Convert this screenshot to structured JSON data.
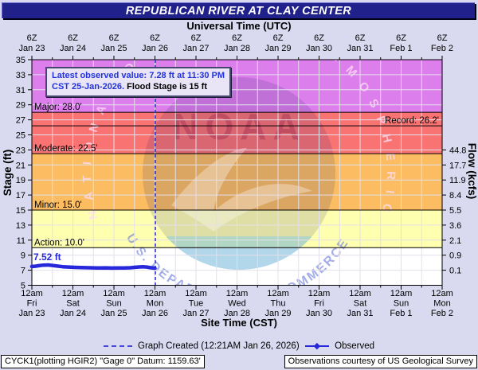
{
  "page_bg": "#D9D9F0",
  "title_bar": {
    "text": "REPUBLICAN RIVER AT CLAY CENTER",
    "bg": "#21218B",
    "fg": "#FFFFFF"
  },
  "top_axis": {
    "title": "Universal Time (UTC)",
    "hour_label": "6Z",
    "dates": [
      "Jan 23",
      "Jan 24",
      "Jan 25",
      "Jan 26",
      "Jan 27",
      "Jan 28",
      "Jan 29",
      "Jan 30",
      "Jan 31",
      "Feb 1",
      "Feb 2"
    ]
  },
  "bottom_axis": {
    "title": "Site Time (CST)",
    "hour_label": "12am",
    "days": [
      "Fri",
      "Sat",
      "Sun",
      "Mon",
      "Tue",
      "Wed",
      "Thu",
      "Fri",
      "Sat",
      "Sun",
      "Mon"
    ],
    "dates": [
      "Jan 23",
      "Jan 24",
      "Jan 25",
      "Jan 26",
      "Jan 27",
      "Jan 28",
      "Jan 29",
      "Jan 30",
      "Jan 31",
      "Feb 1",
      "Feb 2"
    ]
  },
  "left_axis": {
    "title": "Stage (ft)",
    "ticks": [
      35,
      33,
      31,
      29,
      27,
      25,
      23,
      21,
      19,
      17,
      15,
      13,
      11,
      9,
      7,
      5
    ]
  },
  "right_axis": {
    "title": "Flow (kcfs)",
    "ticks": [
      {
        "stage": 23,
        "label": "44.8"
      },
      {
        "stage": 21,
        "label": "17.7"
      },
      {
        "stage": 19,
        "label": "11.9"
      },
      {
        "stage": 17,
        "label": "8.4"
      },
      {
        "stage": 15,
        "label": "5.5"
      },
      {
        "stage": 13,
        "label": "3.6"
      },
      {
        "stage": 11,
        "label": "2.1"
      },
      {
        "stage": 9,
        "label": "0.9"
      },
      {
        "stage": 7,
        "label": "0.1"
      }
    ]
  },
  "flood_bands": [
    {
      "name": "major",
      "from": 28,
      "to": 35,
      "color": "#DC7EEC"
    },
    {
      "name": "moderate",
      "from": 22.5,
      "to": 28,
      "color": "#F97373"
    },
    {
      "name": "minor",
      "from": 15,
      "to": 22.5,
      "color": "#FBBC62"
    },
    {
      "name": "action",
      "from": 10,
      "to": 15,
      "color": "#FFFFB0"
    },
    {
      "name": "normal",
      "from": 5,
      "to": 10,
      "color": "#FFFFFF"
    }
  ],
  "threshold_labels": [
    {
      "text": "Major: 28.0'",
      "stage": 28,
      "side": "left"
    },
    {
      "text": "Record: 26.2'",
      "stage": 26.2,
      "side": "right"
    },
    {
      "text": "Moderate: 22.5'",
      "stage": 22.5,
      "side": "left"
    },
    {
      "text": "Minor: 15.0'",
      "stage": 15,
      "side": "left"
    },
    {
      "text": "Action: 10.0'",
      "stage": 10,
      "side": "left"
    }
  ],
  "record_line_stage": 26.2,
  "annotation_box": {
    "line1": "Latest observed value: 7.28 ft at 11:30 PM",
    "line2_blue": "CST 25-Jan-2026.",
    "line2_black": " Flood Stage is 15 ft"
  },
  "observed_start_label": "7.52 ft",
  "created_line_days": 3.01,
  "legend": {
    "created_label": "Graph Created (12:21AM Jan 26, 2026)",
    "observed_label": "Observed"
  },
  "footer": {
    "left": "CYCK1(plotting HGIR2) \"Gage 0\" Datum: 1159.63'",
    "right": "Observations courtesy of US Geological Survey"
  },
  "watermark": {
    "ring_text": "NATIONAL OCEANIC AND ATMOSPHERIC ADMINISTRATION",
    "bottom_text": "U.S. DEPARTMENT OF COMMERCE",
    "center_text": "NOAA"
  },
  "colors": {
    "observed_line": "#2727DC",
    "grid": "#E3E0EA",
    "axis": "#000000",
    "created_line": "#2929D6",
    "text_blue": "#2233DD"
  },
  "chart_data": {
    "type": "line",
    "title": "REPUBLICAN RIVER AT CLAY CENTER",
    "xlabel": "Site Time (CST)",
    "x2label": "Universal Time (UTC)",
    "ylabel": "Stage (ft)",
    "y2label": "Flow (kcfs)",
    "ylim": [
      5,
      35
    ],
    "x_range": [
      "12am Fri Jan 23",
      "12am Mon Feb 2"
    ],
    "grid": "on",
    "flood_stages_ft": {
      "action": 10.0,
      "minor": 15.0,
      "moderate": 22.5,
      "major": 28.0,
      "record": 26.2
    },
    "flood_stage_note": "Flood Stage is 15 ft",
    "latest_observed": {
      "stage_ft": 7.28,
      "time": "11:30 PM CST 25-Jan-2026"
    },
    "graph_created": "12:21AM Jan 26, 2026",
    "stage_flow_rating_ft_kcfs": [
      [
        7,
        0.1
      ],
      [
        9,
        0.9
      ],
      [
        11,
        2.1
      ],
      [
        13,
        3.6
      ],
      [
        15,
        5.5
      ],
      [
        17,
        8.4
      ],
      [
        19,
        11.9
      ],
      [
        21,
        17.7
      ],
      [
        23,
        44.8
      ]
    ],
    "series": [
      {
        "name": "Observed",
        "points_days_stage": [
          [
            0.0,
            7.5
          ],
          [
            0.08,
            7.53
          ],
          [
            0.17,
            7.6
          ],
          [
            0.28,
            7.68
          ],
          [
            0.4,
            7.7
          ],
          [
            0.5,
            7.64
          ],
          [
            0.62,
            7.55
          ],
          [
            0.75,
            7.47
          ],
          [
            0.9,
            7.42
          ],
          [
            1.05,
            7.38
          ],
          [
            1.2,
            7.35
          ],
          [
            1.4,
            7.33
          ],
          [
            1.6,
            7.3
          ],
          [
            1.8,
            7.32
          ],
          [
            1.95,
            7.29
          ],
          [
            2.1,
            7.31
          ],
          [
            2.25,
            7.3
          ],
          [
            2.4,
            7.33
          ],
          [
            2.55,
            7.4
          ],
          [
            2.7,
            7.45
          ],
          [
            2.8,
            7.42
          ],
          [
            2.9,
            7.33
          ],
          [
            3.0,
            7.28
          ]
        ]
      }
    ]
  }
}
